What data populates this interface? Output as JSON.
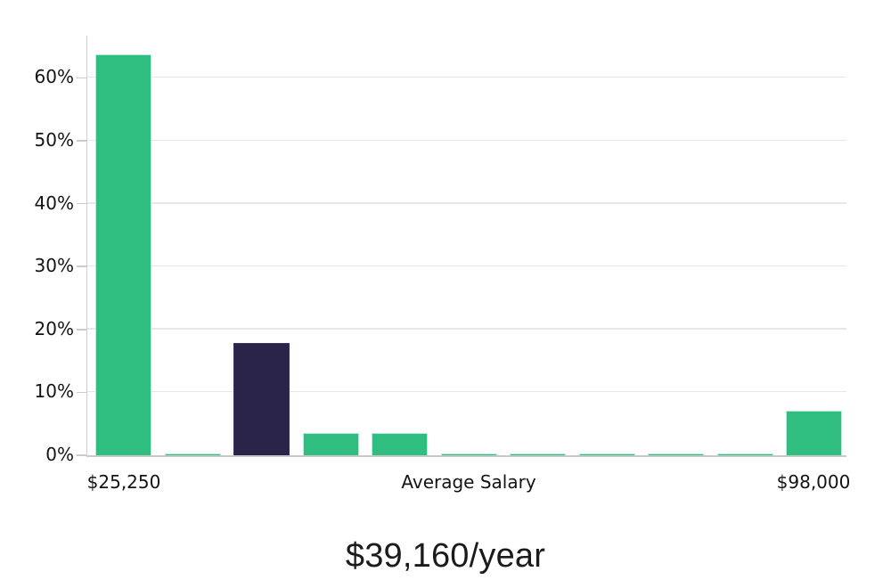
{
  "page": {
    "background": "#ffffff"
  },
  "chart_data": {
    "type": "bar",
    "title": "$39,160/year",
    "xlabel": "Average Salary",
    "x_tick_labels": {
      "first": "$25,250",
      "last": "$98,000"
    },
    "yticks_pct": [
      0,
      10,
      20,
      30,
      40,
      50,
      60
    ],
    "ytick_labels": [
      "0%",
      "10%",
      "20%",
      "30%",
      "40%",
      "50%",
      "60%"
    ],
    "ylim": [
      0,
      67
    ],
    "grid": true,
    "legend": false,
    "categories": [
      "$25,250 bucket",
      "bucket 2",
      "average salary bucket",
      "bucket 4",
      "bucket 5",
      "bucket 6",
      "bucket 7",
      "bucket 8",
      "bucket 9",
      "bucket 10",
      "$98,000 bucket"
    ],
    "values_pct": [
      63.7,
      0.3,
      17.8,
      3.6,
      3.6,
      0.3,
      0.3,
      0.3,
      0.3,
      0.3,
      7.1
    ],
    "bar_colors": [
      "green",
      "green",
      "navy",
      "green",
      "green",
      "green",
      "green",
      "green",
      "green",
      "green",
      "green"
    ],
    "highlighted_bar_index": 2,
    "colors": {
      "green": "#2fbe7f",
      "green_border": "#b7eed7",
      "navy": "#2a2449",
      "navy_border": "#39315f",
      "gridline": "#e7e7e7",
      "axis": "#c9c9c9",
      "label_text": "#141414",
      "title_text": "#1b1b1b"
    }
  }
}
